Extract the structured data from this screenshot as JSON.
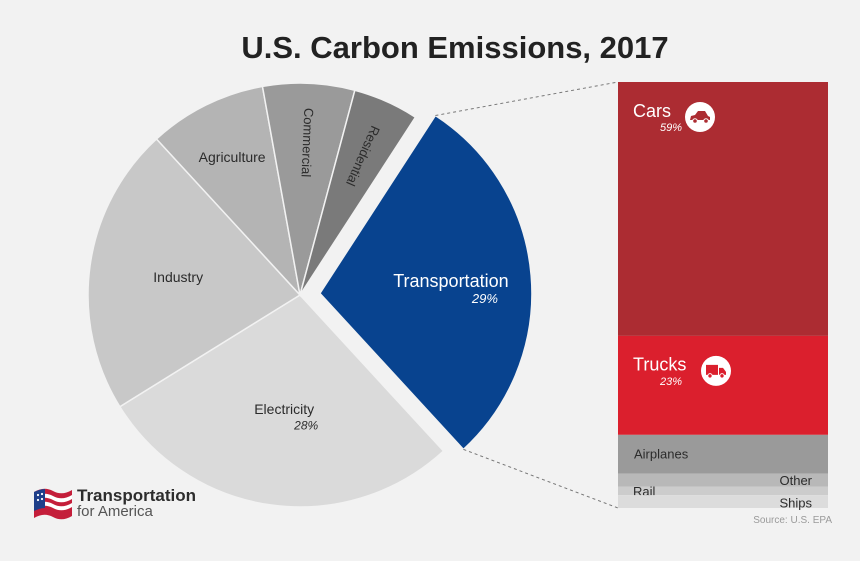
{
  "chart_data": [
    {
      "type": "pie",
      "title": "U.S. Carbon Emissions, 2017",
      "slices": [
        {
          "label": "Transportation",
          "value": 29,
          "value_label": "29%",
          "color": "#08438f"
        },
        {
          "label": "Electricity",
          "value": 28,
          "value_label": "28%",
          "color": "#dadada"
        },
        {
          "label": "Industry",
          "value": 22,
          "value_label": "",
          "color": "#c8c8c8"
        },
        {
          "label": "Agriculture",
          "value": 9,
          "value_label": "",
          "color": "#b4b4b4"
        },
        {
          "label": "Commercial",
          "value": 7,
          "value_label": "",
          "color": "#9a9a9a"
        },
        {
          "label": "Residential",
          "value": 5,
          "value_label": "",
          "color": "#7a7a7a"
        }
      ]
    },
    {
      "type": "bar",
      "stacked": true,
      "series": [
        {
          "name": "Cars",
          "value": 59,
          "value_label": "59%",
          "color": "#ac2c32",
          "icon": "car-icon"
        },
        {
          "name": "Trucks",
          "value": 23,
          "value_label": "23%",
          "color": "#db1f2d",
          "icon": "truck-icon"
        },
        {
          "name": "Airplanes",
          "value": 9,
          "value_label": "",
          "color": "#9a9a9a"
        },
        {
          "name": "Other",
          "value": 3,
          "value_label": "",
          "color": "#b8b8b8"
        },
        {
          "name": "Rail",
          "value": 2,
          "value_label": "",
          "color": "#cccccc"
        },
        {
          "name": "Ships",
          "value": 3,
          "value_label": "",
          "color": "#dcdcdc"
        }
      ]
    }
  ],
  "source": "Source: U.S. EPA",
  "brand": {
    "line1": "Transportation",
    "line2": "for America"
  }
}
